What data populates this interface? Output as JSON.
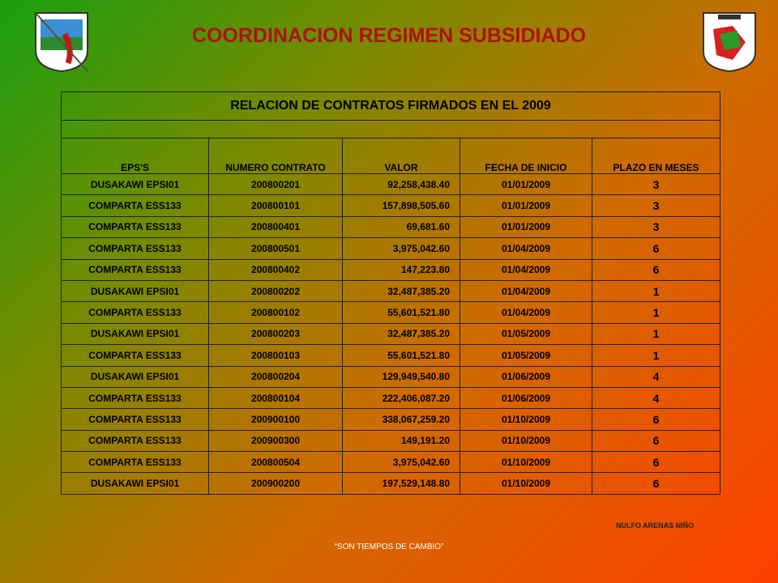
{
  "header": {
    "title": "COORDINACION REGIMEN SUBSIDIADO"
  },
  "table": {
    "title": "RELACION DE CONTRATOS FIRMADOS EN EL 2009",
    "columns": [
      "EPS'S",
      "NUMERO CONTRATO",
      "VALOR",
      "FECHA DE INICIO",
      "PLAZO EN MESES"
    ],
    "rows": [
      [
        "DUSAKAWI EPSI01",
        "200800201",
        "92,258,438.40",
        "01/01/2009",
        "3"
      ],
      [
        "COMPARTA ESS133",
        "200800101",
        "157,898,505.60",
        "01/01/2009",
        "3"
      ],
      [
        "COMPARTA ESS133",
        "200800401",
        "69,681.60",
        "01/01/2009",
        "3"
      ],
      [
        "COMPARTA ESS133",
        "200800501",
        "3,975,042.60",
        "01/04/2009",
        "6"
      ],
      [
        "COMPARTA ESS133",
        "200800402",
        "147,223.80",
        "01/04/2009",
        "6"
      ],
      [
        "DUSAKAWI EPSI01",
        "200800202",
        "32,487,385.20",
        "01/04/2009",
        "1"
      ],
      [
        "COMPARTA ESS133",
        "200800102",
        "55,601,521.80",
        "01/04/2009",
        "1"
      ],
      [
        "DUSAKAWI EPSI01",
        "200800203",
        "32,487,385.20",
        "01/05/2009",
        "1"
      ],
      [
        "COMPARTA ESS133",
        "200800103",
        "55,601,521.80",
        "01/05/2009",
        "1"
      ],
      [
        "DUSAKAWI EPSI01",
        "200800204",
        "129,949,540.80",
        "01/06/2009",
        "4"
      ],
      [
        "COMPARTA ESS133",
        "200800104",
        "222,406,087.20",
        "01/06/2009",
        "4"
      ],
      [
        "COMPARTA ESS133",
        "200900100",
        "338,067,259.20",
        "01/10/2009",
        "6"
      ],
      [
        "COMPARTA ESS133",
        "200900300",
        "149,191.20",
        "01/10/2009",
        "6"
      ],
      [
        "COMPARTA ESS133",
        "200800504",
        "3,975,042.60",
        "01/10/2009",
        "6"
      ],
      [
        "DUSAKAWI EPSI01",
        "200900200",
        "197,529,148.80",
        "01/10/2009",
        "6"
      ]
    ]
  },
  "footer": {
    "signature": "NULFO ARENAS NIÑO",
    "slogan": "“SON TIEMPOS DE CAMBIO”"
  }
}
